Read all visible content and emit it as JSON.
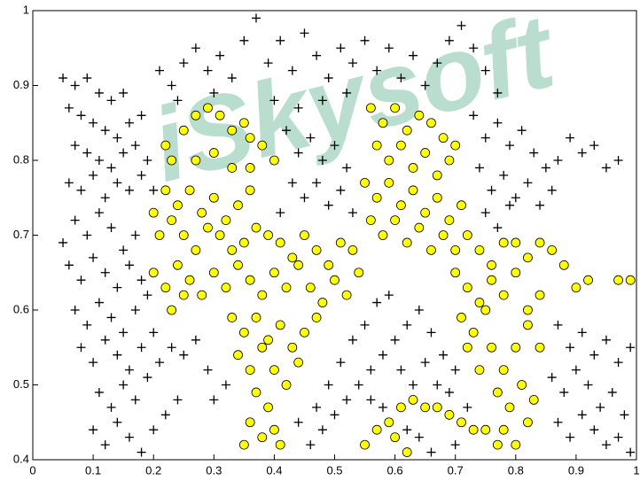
{
  "watermark": "iSkysoft",
  "chart_data": {
    "type": "scatter",
    "xlim": [
      0,
      1
    ],
    "ylim": [
      0.4,
      1
    ],
    "xticks": [
      0,
      0.1,
      0.2,
      0.3,
      0.4,
      0.5,
      0.6,
      0.7,
      0.8,
      0.9,
      1
    ],
    "yticks": [
      0.4,
      0.5,
      0.6,
      0.7,
      0.8,
      0.9,
      1
    ],
    "series": [
      {
        "marker": "plus",
        "color": "#000000",
        "x": [
          0.05,
          0.07,
          0.09,
          0.11,
          0.13,
          0.15,
          0.06,
          0.08,
          0.1,
          0.12,
          0.14,
          0.16,
          0.18,
          0.07,
          0.09,
          0.11,
          0.13,
          0.15,
          0.17,
          0.19,
          0.06,
          0.08,
          0.1,
          0.12,
          0.14,
          0.16,
          0.18,
          0.2,
          0.21,
          0.23,
          0.25,
          0.27,
          0.29,
          0.31,
          0.33,
          0.35,
          0.37,
          0.39,
          0.41,
          0.43,
          0.45,
          0.47,
          0.49,
          0.51,
          0.53,
          0.55,
          0.57,
          0.59,
          0.61,
          0.63,
          0.65,
          0.67,
          0.69,
          0.71,
          0.73,
          0.75,
          0.77,
          0.24,
          0.3,
          0.4,
          0.44,
          0.48,
          0.52,
          0.42,
          0.44,
          0.46,
          0.48,
          0.5,
          0.52,
          0.43,
          0.45,
          0.47,
          0.49,
          0.51,
          0.53,
          0.41,
          0.73,
          0.75,
          0.77,
          0.79,
          0.81,
          0.83,
          0.85,
          0.87,
          0.89,
          0.91,
          0.93,
          0.95,
          0.97,
          0.74,
          0.76,
          0.78,
          0.8,
          0.82,
          0.84,
          0.86,
          0.75,
          0.77,
          0.79,
          0.05,
          0.07,
          0.09,
          0.11,
          0.13,
          0.15,
          0.17,
          0.06,
          0.08,
          0.1,
          0.12,
          0.14,
          0.16,
          0.18,
          0.07,
          0.09,
          0.11,
          0.13,
          0.15,
          0.17,
          0.19,
          0.08,
          0.1,
          0.12,
          0.14,
          0.16,
          0.18,
          0.2,
          0.11,
          0.13,
          0.15,
          0.17,
          0.19,
          0.21,
          0.23,
          0.25,
          0.27,
          0.29,
          0.1,
          0.12,
          0.14,
          0.16,
          0.18,
          0.2,
          0.22,
          0.24,
          0.3,
          0.32,
          0.46,
          0.48,
          0.5,
          0.52,
          0.54,
          0.56,
          0.58,
          0.6,
          0.62,
          0.64,
          0.66,
          0.68,
          0.7,
          0.51,
          0.53,
          0.55,
          0.57,
          0.59,
          0.61,
          0.63,
          0.65,
          0.67,
          0.69,
          0.56,
          0.58,
          0.49,
          0.47,
          0.44,
          0.62,
          0.64,
          0.66,
          0.7,
          0.72,
          0.87,
          0.89,
          0.91,
          0.93,
          0.95,
          0.97,
          0.99,
          0.86,
          0.88,
          0.9,
          0.92,
          0.94,
          0.96,
          0.98,
          0.87,
          0.89,
          0.91,
          0.93,
          0.95,
          0.97,
          0.99
        ],
        "y": [
          0.91,
          0.9,
          0.91,
          0.89,
          0.88,
          0.89,
          0.87,
          0.86,
          0.85,
          0.84,
          0.83,
          0.85,
          0.86,
          0.82,
          0.81,
          0.8,
          0.79,
          0.81,
          0.82,
          0.8,
          0.77,
          0.76,
          0.78,
          0.75,
          0.77,
          0.76,
          0.78,
          0.76,
          0.92,
          0.9,
          0.93,
          0.95,
          0.92,
          0.94,
          0.91,
          0.96,
          0.99,
          0.93,
          0.96,
          0.92,
          0.97,
          0.94,
          0.91,
          0.95,
          0.93,
          0.96,
          0.92,
          0.95,
          0.91,
          0.94,
          0.9,
          0.93,
          0.96,
          0.98,
          0.95,
          0.92,
          0.89,
          0.88,
          0.89,
          0.88,
          0.87,
          0.88,
          0.89,
          0.84,
          0.81,
          0.83,
          0.8,
          0.82,
          0.79,
          0.77,
          0.75,
          0.77,
          0.74,
          0.76,
          0.73,
          0.73,
          0.86,
          0.83,
          0.85,
          0.82,
          0.84,
          0.81,
          0.79,
          0.8,
          0.83,
          0.81,
          0.82,
          0.79,
          0.8,
          0.79,
          0.76,
          0.78,
          0.75,
          0.77,
          0.74,
          0.76,
          0.73,
          0.71,
          0.74,
          0.69,
          0.72,
          0.7,
          0.73,
          0.71,
          0.68,
          0.7,
          0.66,
          0.64,
          0.67,
          0.65,
          0.63,
          0.66,
          0.64,
          0.6,
          0.58,
          0.61,
          0.59,
          0.57,
          0.6,
          0.62,
          0.55,
          0.53,
          0.56,
          0.54,
          0.52,
          0.55,
          0.57,
          0.49,
          0.47,
          0.5,
          0.48,
          0.51,
          0.53,
          0.55,
          0.54,
          0.56,
          0.52,
          0.44,
          0.42,
          0.45,
          0.43,
          0.41,
          0.44,
          0.46,
          0.48,
          0.48,
          0.5,
          0.42,
          0.44,
          0.46,
          0.48,
          0.5,
          0.52,
          0.54,
          0.56,
          0.58,
          0.6,
          0.57,
          0.54,
          0.52,
          0.53,
          0.56,
          0.58,
          0.61,
          0.62,
          0.52,
          0.5,
          0.53,
          0.5,
          0.49,
          0.48,
          0.47,
          0.5,
          0.47,
          0.45,
          0.44,
          0.43,
          0.41,
          0.42,
          0.47,
          0.58,
          0.55,
          0.57,
          0.54,
          0.56,
          0.53,
          0.55,
          0.51,
          0.49,
          0.52,
          0.5,
          0.47,
          0.49,
          0.46,
          0.45,
          0.43,
          0.46,
          0.44,
          0.42,
          0.43,
          0.41
        ]
      },
      {
        "marker": "circle",
        "color": "#ffff00",
        "x": [
          0.22,
          0.23,
          0.25,
          0.27,
          0.29,
          0.31,
          0.33,
          0.35,
          0.36,
          0.38,
          0.27,
          0.3,
          0.33,
          0.36,
          0.4,
          0.22,
          0.24,
          0.26,
          0.28,
          0.3,
          0.32,
          0.34,
          0.36,
          0.2,
          0.21,
          0.23,
          0.25,
          0.27,
          0.29,
          0.31,
          0.33,
          0.35,
          0.37,
          0.39,
          0.41,
          0.43,
          0.45,
          0.47,
          0.49,
          0.51,
          0.53,
          0.2,
          0.22,
          0.24,
          0.26,
          0.28,
          0.3,
          0.32,
          0.34,
          0.36,
          0.38,
          0.4,
          0.42,
          0.44,
          0.46,
          0.48,
          0.5,
          0.52,
          0.54,
          0.23,
          0.25,
          0.33,
          0.35,
          0.37,
          0.39,
          0.41,
          0.43,
          0.45,
          0.47,
          0.34,
          0.36,
          0.38,
          0.4,
          0.42,
          0.44,
          0.37,
          0.39,
          0.36,
          0.38,
          0.35,
          0.4,
          0.41,
          0.56,
          0.58,
          0.6,
          0.62,
          0.64,
          0.66,
          0.68,
          0.7,
          0.57,
          0.59,
          0.61,
          0.63,
          0.65,
          0.67,
          0.69,
          0.55,
          0.57,
          0.59,
          0.61,
          0.63,
          0.65,
          0.67,
          0.69,
          0.71,
          0.56,
          0.58,
          0.6,
          0.62,
          0.64,
          0.66,
          0.68,
          0.7,
          0.72,
          0.74,
          0.76,
          0.78,
          0.8,
          0.82,
          0.84,
          0.86,
          0.88,
          0.9,
          0.92,
          0.97,
          0.99,
          0.7,
          0.72,
          0.74,
          0.76,
          0.78,
          0.8,
          0.82,
          0.84,
          0.71,
          0.73,
          0.75,
          0.72,
          0.74,
          0.76,
          0.78,
          0.8,
          0.82,
          0.84,
          0.77,
          0.79,
          0.81,
          0.83,
          0.78,
          0.8,
          0.82,
          0.55,
          0.57,
          0.59,
          0.61,
          0.63,
          0.65,
          0.67,
          0.69,
          0.71,
          0.73,
          0.75,
          0.77,
          0.6,
          0.62
        ],
        "y": [
          0.82,
          0.8,
          0.84,
          0.86,
          0.87,
          0.86,
          0.84,
          0.85,
          0.83,
          0.82,
          0.8,
          0.81,
          0.79,
          0.79,
          0.8,
          0.76,
          0.74,
          0.76,
          0.73,
          0.75,
          0.72,
          0.74,
          0.76,
          0.73,
          0.7,
          0.72,
          0.7,
          0.68,
          0.71,
          0.7,
          0.68,
          0.69,
          0.71,
          0.7,
          0.69,
          0.67,
          0.7,
          0.68,
          0.66,
          0.69,
          0.68,
          0.65,
          0.63,
          0.66,
          0.64,
          0.62,
          0.65,
          0.63,
          0.66,
          0.64,
          0.62,
          0.65,
          0.63,
          0.66,
          0.63,
          0.61,
          0.64,
          0.62,
          0.65,
          0.6,
          0.62,
          0.59,
          0.57,
          0.59,
          0.56,
          0.58,
          0.55,
          0.57,
          0.59,
          0.54,
          0.52,
          0.55,
          0.52,
          0.5,
          0.53,
          0.49,
          0.47,
          0.45,
          0.43,
          0.42,
          0.44,
          0.42,
          0.87,
          0.85,
          0.87,
          0.84,
          0.86,
          0.85,
          0.83,
          0.82,
          0.82,
          0.8,
          0.82,
          0.79,
          0.81,
          0.78,
          0.8,
          0.77,
          0.75,
          0.77,
          0.74,
          0.76,
          0.73,
          0.75,
          0.72,
          0.74,
          0.72,
          0.7,
          0.72,
          0.69,
          0.71,
          0.68,
          0.7,
          0.68,
          0.7,
          0.68,
          0.66,
          0.69,
          0.69,
          0.67,
          0.69,
          0.68,
          0.66,
          0.63,
          0.64,
          0.64,
          0.64,
          0.65,
          0.63,
          0.61,
          0.64,
          0.62,
          0.65,
          0.6,
          0.62,
          0.59,
          0.57,
          0.6,
          0.55,
          0.52,
          0.55,
          0.52,
          0.55,
          0.58,
          0.55,
          0.49,
          0.47,
          0.5,
          0.48,
          0.44,
          0.42,
          0.45,
          0.42,
          0.44,
          0.45,
          0.47,
          0.48,
          0.47,
          0.47,
          0.46,
          0.45,
          0.44,
          0.44,
          0.42,
          0.43,
          0.41
        ]
      }
    ]
  }
}
